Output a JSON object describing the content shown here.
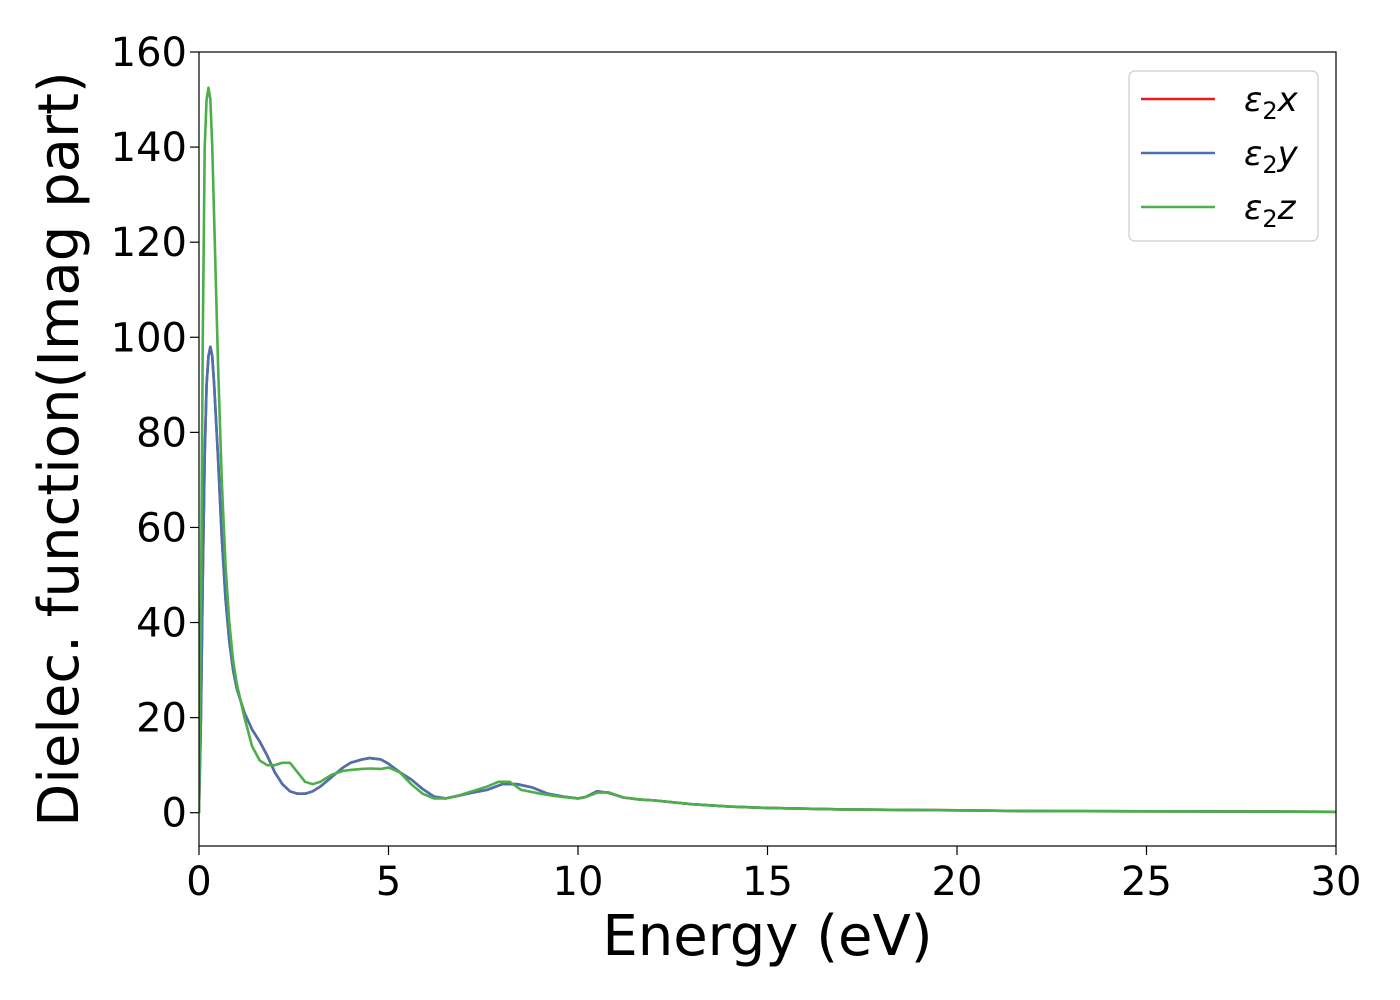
{
  "chart_data": {
    "type": "line",
    "xlabel": "Energy (eV)",
    "ylabel": "Dielec. function(Imag part)",
    "xlim": [
      0,
      30
    ],
    "ylim": [
      -7,
      160
    ],
    "xticks": [
      0,
      5,
      10,
      15,
      20,
      25,
      30
    ],
    "yticks": [
      0,
      20,
      40,
      60,
      80,
      100,
      120,
      140,
      160
    ],
    "grid": false,
    "legend_position": "top-right",
    "series": [
      {
        "name": "ε2x",
        "legend_main": "ε",
        "legend_sub": "2",
        "legend_suffix": "x",
        "color": "#e41a1c",
        "x": [
          0,
          0.05,
          0.1,
          0.15,
          0.2,
          0.25,
          0.3,
          0.35,
          0.4,
          0.5,
          0.6,
          0.7,
          0.8,
          0.9,
          1.0,
          1.2,
          1.4,
          1.6,
          1.8,
          2.0,
          2.2,
          2.4,
          2.6,
          2.8,
          3.0,
          3.2,
          3.5,
          3.8,
          4.0,
          4.3,
          4.5,
          4.8,
          5.0,
          5.3,
          5.6,
          5.9,
          6.2,
          6.5,
          6.8,
          7.2,
          7.6,
          8.0,
          8.4,
          8.8,
          9.2,
          9.6,
          10.0,
          10.2,
          10.5,
          10.8,
          11.2,
          11.6,
          12.0,
          13.0,
          14.0,
          15.0,
          17.0,
          20.0,
          22.0,
          25.0,
          30.0
        ],
        "values": [
          0,
          20,
          50,
          75,
          90,
          96,
          98,
          96,
          90,
          75,
          58,
          45,
          36,
          30,
          26,
          21,
          17.5,
          15,
          12,
          8.5,
          6,
          4.5,
          4,
          4,
          4.5,
          5.5,
          7.5,
          9.5,
          10.5,
          11.2,
          11.5,
          11.2,
          10.3,
          8.5,
          7,
          5,
          3.4,
          3,
          3.5,
          4.2,
          4.8,
          6,
          6,
          5.3,
          4,
          3.4,
          3,
          3.3,
          4.5,
          4.2,
          3.2,
          2.8,
          2.6,
          1.8,
          1.3,
          1.0,
          0.7,
          0.5,
          0.35,
          0.3,
          0.2
        ]
      },
      {
        "name": "ε2y",
        "legend_main": "ε",
        "legend_sub": "2",
        "legend_suffix": "y",
        "color": "#4a72b0",
        "x": [
          0,
          0.05,
          0.1,
          0.15,
          0.2,
          0.25,
          0.3,
          0.35,
          0.4,
          0.5,
          0.6,
          0.7,
          0.8,
          0.9,
          1.0,
          1.2,
          1.4,
          1.6,
          1.8,
          2.0,
          2.2,
          2.4,
          2.6,
          2.8,
          3.0,
          3.2,
          3.5,
          3.8,
          4.0,
          4.3,
          4.5,
          4.8,
          5.0,
          5.3,
          5.6,
          5.9,
          6.2,
          6.5,
          6.8,
          7.2,
          7.6,
          8.0,
          8.4,
          8.8,
          9.2,
          9.6,
          10.0,
          10.2,
          10.5,
          10.8,
          11.2,
          11.6,
          12.0,
          13.0,
          14.0,
          15.0,
          17.0,
          20.0,
          22.0,
          25.0,
          30.0
        ],
        "values": [
          0,
          20,
          50,
          75,
          90,
          96,
          98,
          96,
          90,
          75,
          58,
          45,
          36,
          30,
          26,
          21,
          17.5,
          15,
          12,
          8.5,
          6,
          4.5,
          4,
          4,
          4.5,
          5.5,
          7.5,
          9.5,
          10.5,
          11.2,
          11.5,
          11.2,
          10.3,
          8.5,
          7,
          5,
          3.4,
          3,
          3.5,
          4.2,
          4.8,
          6,
          6,
          5.3,
          4,
          3.4,
          3,
          3.3,
          4.5,
          4.2,
          3.2,
          2.8,
          2.6,
          1.8,
          1.3,
          1.0,
          0.7,
          0.5,
          0.35,
          0.3,
          0.2
        ]
      },
      {
        "name": "ε2z",
        "legend_main": "ε",
        "legend_sub": "2",
        "legend_suffix": "z",
        "color": "#4daf4a",
        "x": [
          0,
          0.05,
          0.1,
          0.15,
          0.2,
          0.25,
          0.3,
          0.35,
          0.4,
          0.5,
          0.6,
          0.7,
          0.8,
          0.9,
          1.0,
          1.2,
          1.4,
          1.6,
          1.8,
          2.0,
          2.2,
          2.4,
          2.6,
          2.8,
          3.0,
          3.2,
          3.5,
          3.8,
          4.0,
          4.3,
          4.5,
          4.8,
          5.0,
          5.3,
          5.6,
          5.9,
          6.2,
          6.5,
          6.8,
          7.2,
          7.6,
          7.9,
          8.2,
          8.5,
          9.0,
          9.5,
          10.0,
          10.2,
          10.5,
          10.8,
          11.2,
          11.6,
          12.0,
          13.0,
          14.0,
          15.0,
          17.0,
          20.0,
          22.0,
          25.0,
          30.0
        ],
        "values": [
          0,
          40,
          100,
          140,
          150,
          152.5,
          150,
          140,
          125,
          95,
          70,
          52,
          40,
          32,
          27,
          20,
          14,
          11,
          10,
          10,
          10.5,
          10.5,
          8.5,
          6.5,
          6,
          6.5,
          8,
          8.8,
          9,
          9.2,
          9.3,
          9.2,
          9.5,
          8.5,
          6,
          4,
          3,
          3,
          3.5,
          4.5,
          5.5,
          6.5,
          6.5,
          4.8,
          4,
          3.4,
          3,
          3.3,
          4.2,
          4.3,
          3.2,
          2.8,
          2.6,
          1.8,
          1.3,
          1.0,
          0.7,
          0.5,
          0.35,
          0.3,
          0.2
        ]
      }
    ]
  }
}
